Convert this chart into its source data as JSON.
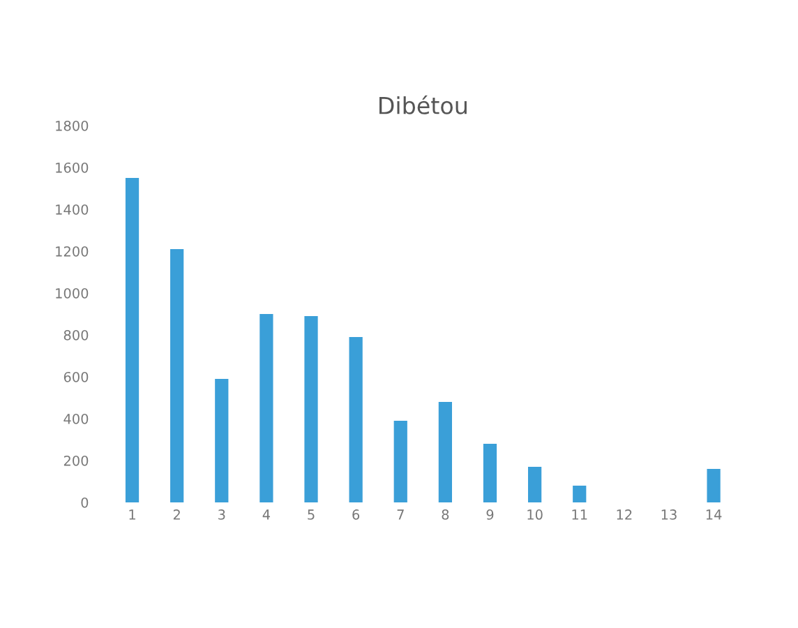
{
  "chart_data": {
    "type": "bar",
    "title": "Dibétou",
    "categories": [
      "1",
      "2",
      "3",
      "4",
      "5",
      "6",
      "7",
      "8",
      "9",
      "10",
      "11",
      "12",
      "13",
      "14"
    ],
    "values": [
      1550,
      1210,
      590,
      900,
      890,
      790,
      390,
      480,
      280,
      170,
      80,
      null,
      null,
      160
    ],
    "color": "#3a9fd8",
    "ylim": [
      0,
      1800
    ],
    "yticks": [
      0,
      200,
      400,
      600,
      800,
      1000,
      1200,
      1400,
      1600,
      1800
    ],
    "grid": false
  }
}
